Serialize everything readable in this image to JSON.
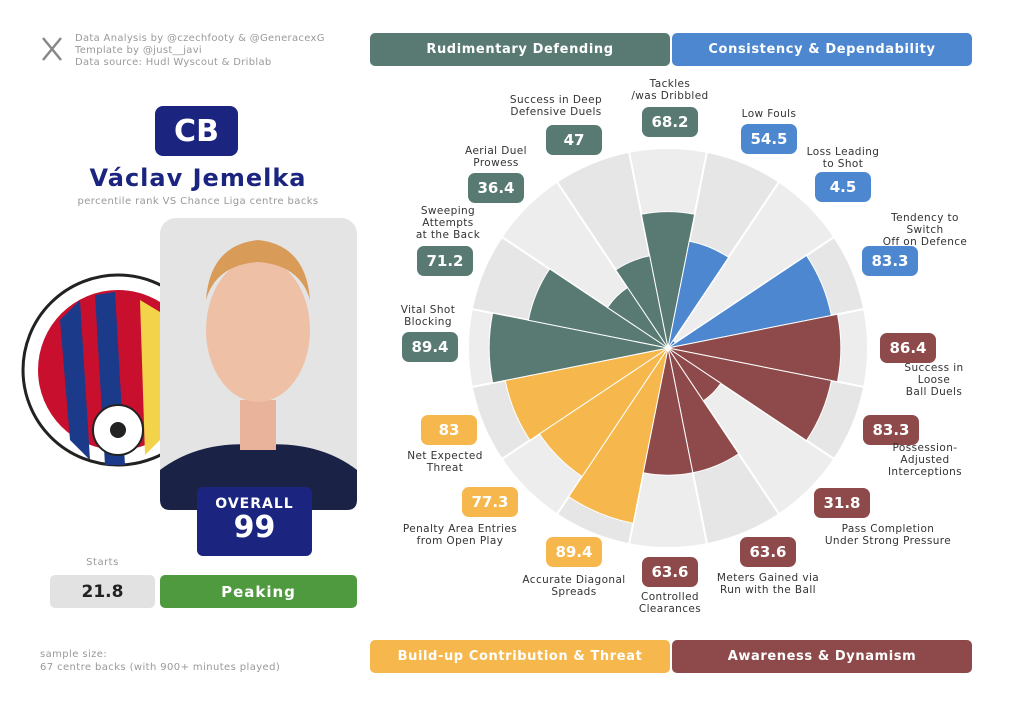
{
  "header": {
    "credits": [
      "Data Analysis by @czechfooty & @GeneracexG",
      "Template by @just__javi",
      "Data source: Hudl Wyscout & Driblab"
    ]
  },
  "player": {
    "position": "CB",
    "name": "Václav Jemelka",
    "subtitle": "percentile rank VS Chance Liga centre backs",
    "overall_label": "OVERALL",
    "overall": 99,
    "starts_label": "Starts",
    "starts": 21.8,
    "form": "Peaking"
  },
  "footer": {
    "sample": "sample size:\n67 centre backs (with 900+ minutes played)"
  },
  "chart_data": {
    "type": "polar",
    "categories": [
      "Tackles\n/was Dribbled",
      "Low Fouls",
      "Loss Leading\nto Shot",
      "Tendency to Switch\nOff on Defence",
      "Success in Loose\nBall Duels",
      "Possession-Adjusted\nInterceptions",
      "Pass Completion\nUnder Strong Pressure",
      "Meters Gained via\nRun with the Ball",
      "Controlled\nClearances",
      "Accurate Diagonal\nSpreads",
      "Penalty Area Entries\nfrom Open Play",
      "Net Expected\nThreat",
      "Vital Shot\nBlocking",
      "Sweeping\nAttempts\nat the Back",
      "Aerial Duel\nProwess",
      "Success in Deep\nDefensive Duels"
    ],
    "values": [
      68.2,
      54.5,
      4.5,
      83.3,
      86.4,
      83.3,
      31.8,
      63.6,
      63.6,
      89.4,
      77.3,
      83,
      89.4,
      71.2,
      36.4,
      47
    ],
    "colors": [
      "#587a72",
      "#4d87d0",
      "#4d87d0",
      "#4d87d0",
      "#8e4a4a",
      "#8e4a4a",
      "#8e4a4a",
      "#8e4a4a",
      "#8e4a4a",
      "#f6b84d",
      "#f6b84d",
      "#f6b84d",
      "#587a72",
      "#587a72",
      "#587a72",
      "#587a72"
    ],
    "ylim": [
      0,
      100
    ],
    "groups": [
      {
        "name": "Rudimentary Defending",
        "color": "#587a72"
      },
      {
        "name": "Consistency & Dependability",
        "color": "#4d87d0"
      },
      {
        "name": "Build-up Contribution & Threat",
        "color": "#f6b84d"
      },
      {
        "name": "Awareness & Dynamism",
        "color": "#8e4a4a"
      }
    ]
  }
}
